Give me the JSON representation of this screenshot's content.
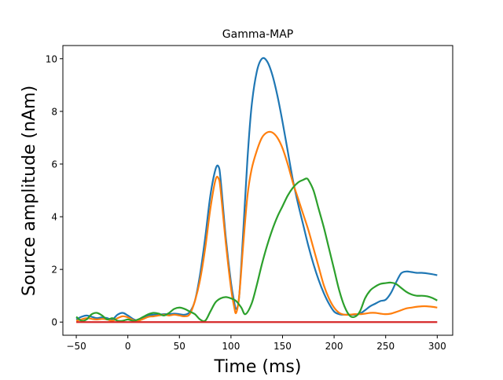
{
  "chart_data": {
    "type": "line",
    "title": "Gamma-MAP",
    "xlabel": "Time (ms)",
    "ylabel": "Source amplitude (nAm)",
    "xlim": [
      -63,
      315
    ],
    "ylim": [
      -0.5,
      10.5
    ],
    "xticks": [
      -50,
      0,
      50,
      100,
      150,
      200,
      250,
      300
    ],
    "yticks": [
      0,
      2,
      4,
      6,
      8,
      10
    ],
    "xtick_labels": [
      "−50",
      "0",
      "50",
      "100",
      "150",
      "200",
      "250",
      "300"
    ],
    "ytick_labels": [
      "0",
      "2",
      "4",
      "6",
      "8",
      "10"
    ],
    "grid": false,
    "legend": "none",
    "series": [
      {
        "color": "#1f77b4",
        "x": [
          -50,
          -45,
          -40,
          -35,
          -30,
          -25,
          -20,
          -15,
          -10,
          -5,
          0,
          5,
          10,
          15,
          20,
          25,
          30,
          35,
          40,
          45,
          50,
          55,
          60,
          65,
          70,
          75,
          80,
          85,
          88,
          90,
          95,
          100,
          103,
          105,
          108,
          112,
          116,
          120,
          125,
          130,
          135,
          140,
          145,
          150,
          155,
          160,
          165,
          170,
          175,
          180,
          185,
          190,
          195,
          200,
          205,
          210,
          215,
          220,
          225,
          230,
          235,
          240,
          245,
          250,
          255,
          260,
          265,
          270,
          275,
          280,
          285,
          290,
          295,
          300
        ],
        "y": [
          0.1,
          0.2,
          0.25,
          0.2,
          0.15,
          0.18,
          0.15,
          0.1,
          0.28,
          0.35,
          0.25,
          0.12,
          0.05,
          0.15,
          0.25,
          0.28,
          0.28,
          0.3,
          0.3,
          0.32,
          0.3,
          0.28,
          0.38,
          0.8,
          1.8,
          3.2,
          4.8,
          5.8,
          5.9,
          5.4,
          3.2,
          1.5,
          0.8,
          0.5,
          1.0,
          3.5,
          6.2,
          8.2,
          9.5,
          10.0,
          9.9,
          9.4,
          8.6,
          7.6,
          6.5,
          5.4,
          4.5,
          3.7,
          2.9,
          2.2,
          1.6,
          1.1,
          0.7,
          0.4,
          0.3,
          0.28,
          0.28,
          0.28,
          0.32,
          0.45,
          0.6,
          0.7,
          0.8,
          0.85,
          1.1,
          1.5,
          1.85,
          1.92,
          1.9,
          1.87,
          1.87,
          1.85,
          1.82,
          1.78
        ]
      },
      {
        "color": "#ff7f0e",
        "x": [
          -50,
          -45,
          -40,
          -35,
          -30,
          -25,
          -20,
          -15,
          -10,
          -5,
          0,
          5,
          10,
          15,
          20,
          25,
          30,
          35,
          40,
          45,
          50,
          55,
          60,
          65,
          70,
          75,
          80,
          85,
          88,
          90,
          95,
          100,
          103,
          105,
          108,
          112,
          116,
          120,
          125,
          130,
          135,
          140,
          145,
          150,
          155,
          160,
          165,
          170,
          175,
          180,
          185,
          190,
          195,
          200,
          205,
          210,
          215,
          220,
          225,
          230,
          235,
          240,
          245,
          250,
          255,
          260,
          265,
          270,
          275,
          280,
          285,
          290,
          295,
          300
        ],
        "y": [
          0.05,
          0.1,
          0.15,
          0.12,
          0.1,
          0.12,
          0.1,
          0.05,
          0.15,
          0.22,
          0.18,
          0.08,
          0.05,
          0.12,
          0.2,
          0.22,
          0.25,
          0.28,
          0.25,
          0.28,
          0.25,
          0.22,
          0.3,
          0.8,
          1.6,
          2.8,
          4.3,
          5.4,
          5.45,
          5.0,
          3.0,
          1.3,
          0.6,
          0.35,
          1.0,
          3.0,
          4.8,
          5.8,
          6.5,
          7.0,
          7.2,
          7.2,
          7.0,
          6.6,
          6.0,
          5.3,
          4.7,
          4.1,
          3.5,
          2.8,
          2.1,
          1.4,
          0.9,
          0.55,
          0.35,
          0.28,
          0.28,
          0.3,
          0.3,
          0.32,
          0.35,
          0.35,
          0.32,
          0.3,
          0.32,
          0.38,
          0.45,
          0.52,
          0.55,
          0.58,
          0.6,
          0.6,
          0.58,
          0.55
        ]
      },
      {
        "color": "#2ca02c",
        "x": [
          -50,
          -45,
          -40,
          -35,
          -30,
          -25,
          -20,
          -15,
          -10,
          -5,
          0,
          5,
          10,
          15,
          20,
          25,
          30,
          35,
          40,
          45,
          50,
          55,
          60,
          65,
          70,
          75,
          80,
          85,
          90,
          95,
          100,
          105,
          110,
          114,
          120,
          125,
          130,
          135,
          140,
          145,
          150,
          155,
          160,
          165,
          170,
          173,
          175,
          180,
          185,
          190,
          195,
          200,
          205,
          210,
          215,
          220,
          225,
          230,
          235,
          240,
          245,
          250,
          255,
          260,
          265,
          270,
          275,
          280,
          285,
          290,
          295,
          300
        ],
        "y": [
          0.2,
          0.05,
          0.1,
          0.3,
          0.35,
          0.25,
          0.1,
          0.15,
          0.05,
          0.05,
          0.1,
          0.05,
          0.1,
          0.2,
          0.3,
          0.35,
          0.32,
          0.25,
          0.35,
          0.5,
          0.55,
          0.5,
          0.4,
          0.3,
          0.1,
          0.05,
          0.4,
          0.75,
          0.9,
          0.95,
          0.9,
          0.8,
          0.55,
          0.3,
          0.7,
          1.4,
          2.2,
          2.9,
          3.5,
          4.0,
          4.4,
          4.8,
          5.1,
          5.3,
          5.4,
          5.45,
          5.4,
          5.0,
          4.3,
          3.6,
          2.8,
          2.0,
          1.2,
          0.6,
          0.25,
          0.2,
          0.4,
          0.9,
          1.2,
          1.35,
          1.45,
          1.48,
          1.5,
          1.45,
          1.3,
          1.15,
          1.05,
          1.0,
          1.0,
          0.98,
          0.92,
          0.82
        ]
      },
      {
        "color": "#d62728",
        "x": [
          -50,
          300
        ],
        "y": [
          0,
          0
        ]
      }
    ]
  }
}
